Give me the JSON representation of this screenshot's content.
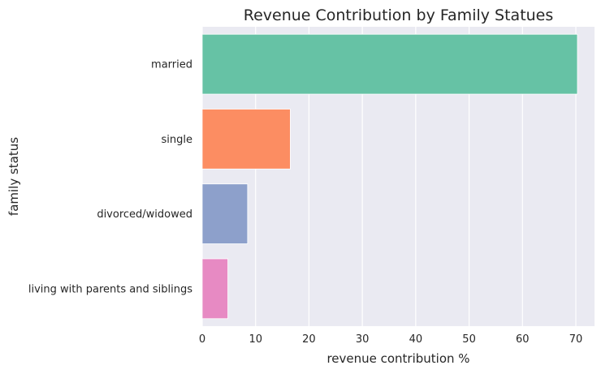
{
  "chart_data": {
    "type": "bar",
    "orientation": "horizontal",
    "title": "Revenue Contribution by Family Statues",
    "xlabel": "revenue contribution %",
    "ylabel": "family status",
    "categories": [
      "married",
      "single",
      "divorced/widowed",
      "living with parents and siblings"
    ],
    "values": [
      70.3,
      16.5,
      8.5,
      4.8
    ],
    "xlim": [
      0,
      73.5
    ],
    "xticks": [
      0,
      10,
      20,
      30,
      40,
      50,
      60,
      70
    ],
    "grid": true,
    "colors": [
      "#66c2a5",
      "#fc8d62",
      "#8da0cb",
      "#e78ac3"
    ],
    "background_color": "#eaeaf2"
  }
}
